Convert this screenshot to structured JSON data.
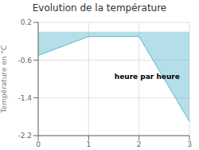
{
  "chart_data": {
    "type": "area",
    "title": "Evolution de la température",
    "xlabel": "heure par heure",
    "ylabel": "Température en °C",
    "x": [
      0,
      1,
      2,
      3
    ],
    "values": [
      -0.5,
      -0.1,
      -0.1,
      -1.9
    ],
    "color": "#5ab8cc",
    "xlim": [
      0,
      3
    ],
    "ylim": [
      -2.2,
      0.2
    ],
    "xticks": [
      0,
      1,
      2,
      3
    ],
    "yticks": [
      0.2,
      -0.6,
      -1.4,
      -2.2
    ],
    "grid": true
  }
}
